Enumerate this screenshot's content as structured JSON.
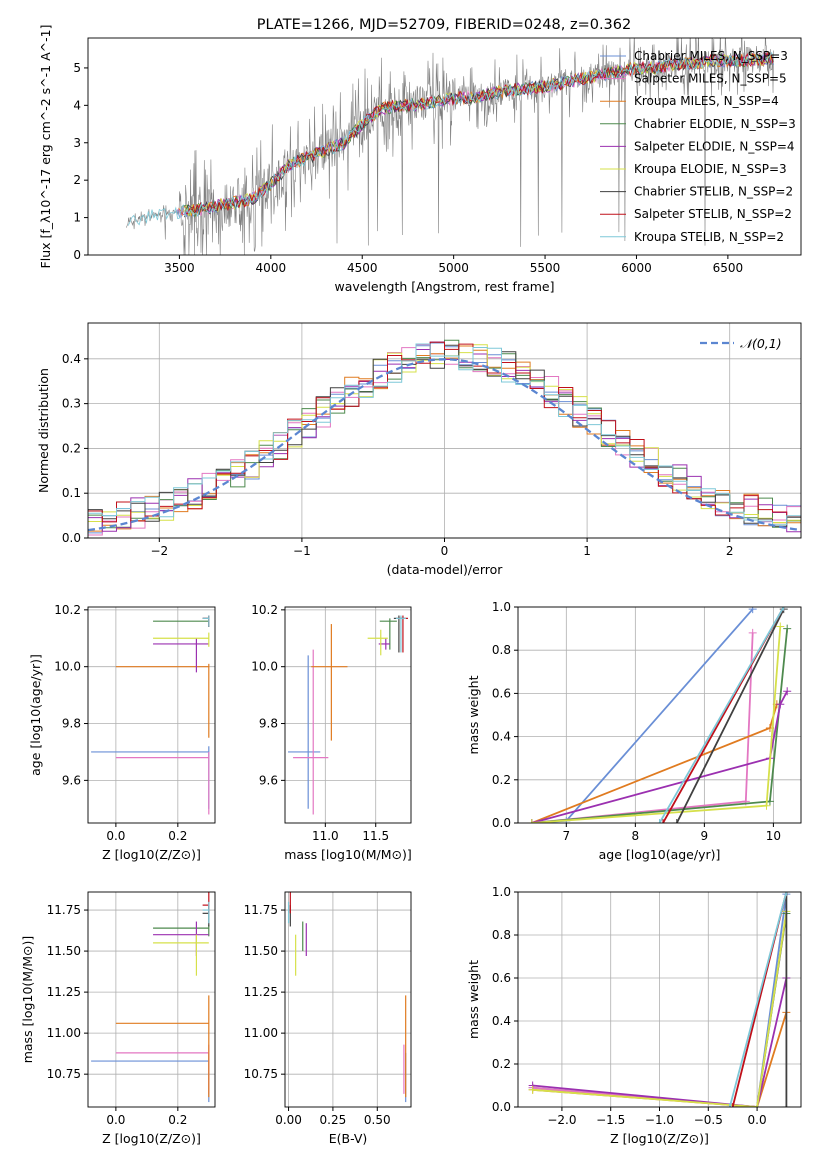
{
  "chart_data": [
    {
      "type": "line",
      "title": "PLATE=1266, MJD=52709, FIBERID=0248, z=0.362",
      "xlabel": "wavelength [Angstrom, rest frame]",
      "ylabel": "Flux [f_λ10^-17 erg cm^-2 s^-1 A^-1]",
      "xlim": [
        3000,
        6900
      ],
      "ylim": [
        0,
        5.8
      ],
      "xticks": [
        3500,
        4000,
        4500,
        5000,
        5500,
        6000,
        6500
      ],
      "yticks": [
        0,
        1,
        2,
        3,
        4,
        5
      ],
      "legend_position": "top-right",
      "observed_color": "#808080",
      "series": [
        {
          "name": "Chabrier MILES, N_SSP=3",
          "color": "#6a8fd6"
        },
        {
          "name": "Salpeter MILES, N_SSP=5",
          "color": "#e377c2"
        },
        {
          "name": "Kroupa MILES, N_SSP=4",
          "color": "#e07b20"
        },
        {
          "name": "Chabrier ELODIE, N_SSP=3",
          "color": "#4e8a4e"
        },
        {
          "name": "Salpeter ELODIE, N_SSP=4",
          "color": "#9b30b0"
        },
        {
          "name": "Kroupa ELODIE, N_SSP=3",
          "color": "#d6e04a"
        },
        {
          "name": "Chabrier STELIB, N_SSP=2",
          "color": "#404040"
        },
        {
          "name": "Salpeter STELIB, N_SSP=2",
          "color": "#c0101a"
        },
        {
          "name": "Kroupa STELIB, N_SSP=2",
          "color": "#7ec8d8"
        }
      ],
      "continuum": {
        "x": [
          3200,
          3300,
          3400,
          3500,
          3600,
          3700,
          3800,
          3900,
          4000,
          4100,
          4200,
          4300,
          4400,
          4500,
          4600,
          4700,
          4800,
          4900,
          5000,
          5100,
          5200,
          5300,
          5400,
          5500,
          5600,
          5700,
          5800,
          5900,
          6000,
          6100,
          6200,
          6300,
          6400,
          6500,
          6600,
          6700,
          6750
        ],
        "y": [
          0.8,
          1.0,
          1.1,
          1.15,
          1.2,
          1.3,
          1.4,
          1.5,
          1.9,
          2.4,
          2.6,
          2.8,
          3.0,
          3.5,
          3.9,
          4.0,
          4.0,
          4.1,
          4.2,
          4.2,
          4.3,
          4.4,
          4.45,
          4.5,
          4.6,
          4.7,
          4.8,
          4.9,
          5.0,
          5.0,
          5.1,
          5.1,
          5.2,
          5.2,
          5.2,
          5.25,
          5.25
        ]
      }
    },
    {
      "type": "histogram",
      "xlabel": "(data-model)/error",
      "ylabel": "Normed distribution",
      "xlim": [
        -2.5,
        2.5
      ],
      "ylim": [
        0,
        0.48
      ],
      "xticks": [
        -2,
        -1,
        0,
        1,
        2
      ],
      "yticks": [
        0.0,
        0.1,
        0.2,
        0.3,
        0.4
      ],
      "grid": true,
      "legend_position": "top-right",
      "normal_label": "𝒩(0,1)",
      "normal_color": "#5b86d1",
      "bin_width": 0.1
    },
    {
      "type": "errorbar",
      "xlabel": "Z [log10(Z/Z⊙)]",
      "ylabel": "age  [log10(age/yr)]",
      "xlim": [
        -0.09,
        0.32
      ],
      "ylim": [
        9.45,
        10.21
      ],
      "xticks": [
        0.0,
        0.2
      ],
      "yticks": [
        9.6,
        9.8,
        10.0,
        10.2
      ],
      "grid": true,
      "points": [
        {
          "series": "Chabrier MILES",
          "x": 0.3,
          "y": 9.7,
          "xerr": [
            0.38,
            0
          ],
          "yerr": [
            0.2,
            0.02
          ]
        },
        {
          "series": "Salpeter MILES",
          "x": 0.3,
          "y": 9.68,
          "xerr": [
            0.3,
            0
          ],
          "yerr": [
            0.2,
            0.02
          ]
        },
        {
          "series": "Kroupa MILES",
          "x": 0.3,
          "y": 10.0,
          "xerr": [
            0.3,
            0
          ],
          "yerr": [
            0.25,
            0.01
          ]
        },
        {
          "series": "Chabrier ELODIE",
          "x": 0.3,
          "y": 10.16,
          "xerr": [
            0.18,
            0
          ],
          "yerr": [
            0.02,
            0.01
          ]
        },
        {
          "series": "Salpeter ELODIE",
          "x": 0.26,
          "y": 10.08,
          "xerr": [
            0.14,
            0.04
          ],
          "yerr": [
            0.1,
            0.02
          ]
        },
        {
          "series": "Kroupa ELODIE",
          "x": 0.3,
          "y": 10.1,
          "xerr": [
            0.18,
            0
          ],
          "yerr": [
            0.03,
            0.02
          ]
        },
        {
          "series": "Chabrier STELIB",
          "x": 0.3,
          "y": 10.17,
          "xerr": [
            0.02,
            0
          ],
          "yerr": [
            0.03,
            0.01
          ]
        },
        {
          "series": "Salpeter STELIB",
          "x": 0.3,
          "y": 10.17,
          "xerr": [
            0.02,
            0
          ],
          "yerr": [
            0.03,
            0.01
          ]
        },
        {
          "series": "Kroupa STELIB",
          "x": 0.3,
          "y": 10.17,
          "xerr": [
            0.02,
            0
          ],
          "yerr": [
            0.03,
            0.01
          ]
        }
      ]
    },
    {
      "type": "errorbar",
      "xlabel": "mass [log10(M/M⊙)]",
      "ylabel": "",
      "xlim": [
        10.6,
        11.85
      ],
      "ylim": [
        9.45,
        10.21
      ],
      "xticks": [
        11.0,
        11.5
      ],
      "yticks": [
        9.6,
        9.8,
        10.0,
        10.2
      ],
      "grid": true,
      "points": [
        {
          "series": "Chabrier MILES",
          "x": 10.83,
          "y": 9.7,
          "xerr": [
            0.2,
            0.12
          ],
          "yerr": [
            0.2,
            0.34
          ]
        },
        {
          "series": "Salpeter MILES",
          "x": 10.88,
          "y": 9.68,
          "xerr": [
            0.2,
            0.15
          ],
          "yerr": [
            0.2,
            0.38
          ]
        },
        {
          "series": "Kroupa MILES",
          "x": 11.06,
          "y": 10.0,
          "xerr": [
            0.2,
            0.16
          ],
          "yerr": [
            0.26,
            0.15
          ]
        },
        {
          "series": "Chabrier ELODIE",
          "x": 11.64,
          "y": 10.16,
          "xerr": [
            0.1,
            0.07
          ],
          "yerr": [
            0.1,
            0.01
          ]
        },
        {
          "series": "Salpeter ELODIE",
          "x": 11.6,
          "y": 10.08,
          "xerr": [
            0.07,
            0.04
          ],
          "yerr": [
            0.02,
            0.02
          ]
        },
        {
          "series": "Kroupa ELODIE",
          "x": 11.55,
          "y": 10.1,
          "xerr": [
            0.13,
            0.07
          ],
          "yerr": [
            0.06,
            0.03
          ]
        },
        {
          "series": "Chabrier STELIB",
          "x": 11.73,
          "y": 10.17,
          "xerr": [
            0.05,
            0.05
          ],
          "yerr": [
            0.12,
            0.01
          ]
        },
        {
          "series": "Salpeter STELIB",
          "x": 11.77,
          "y": 10.17,
          "xerr": [
            0.05,
            0.05
          ],
          "yerr": [
            0.12,
            0.01
          ]
        },
        {
          "series": "Kroupa STELIB",
          "x": 11.75,
          "y": 10.17,
          "xerr": [
            0.05,
            0.05
          ],
          "yerr": [
            0.12,
            0.01
          ]
        }
      ]
    },
    {
      "type": "line",
      "xlabel": "age  [log10(age/yr)]",
      "ylabel": "mass weight",
      "xlim": [
        6.3,
        10.4
      ],
      "ylim": [
        0,
        1.0
      ],
      "xticks": [
        7,
        8,
        9,
        10
      ],
      "yticks": [
        0.0,
        0.2,
        0.4,
        0.6,
        0.8,
        1.0
      ],
      "grid": true,
      "series": [
        {
          "name": "Chabrier MILES",
          "x": [
            6.5,
            7.0,
            9.7
          ],
          "y": [
            0.0,
            0.01,
            0.99
          ]
        },
        {
          "name": "Salpeter MILES",
          "x": [
            6.5,
            9.6,
            9.7
          ],
          "y": [
            0.0,
            0.1,
            0.88
          ]
        },
        {
          "name": "Kroupa MILES",
          "x": [
            6.5,
            9.95,
            10.05
          ],
          "y": [
            0.0,
            0.44,
            0.55
          ]
        },
        {
          "name": "Chabrier ELODIE",
          "x": [
            6.5,
            9.95,
            10.2
          ],
          "y": [
            0.0,
            0.1,
            0.9
          ]
        },
        {
          "name": "Salpeter ELODIE",
          "x": [
            6.5,
            9.95,
            10.1,
            10.2
          ],
          "y": [
            0.0,
            0.3,
            0.55,
            0.61
          ]
        },
        {
          "name": "Kroupa ELODIE",
          "x": [
            6.5,
            9.9,
            10.1
          ],
          "y": [
            0.0,
            0.08,
            0.91
          ]
        },
        {
          "name": "Chabrier STELIB",
          "x": [
            8.6,
            10.15
          ],
          "y": [
            0.0,
            0.99
          ]
        },
        {
          "name": "Salpeter STELIB",
          "x": [
            8.4,
            10.15
          ],
          "y": [
            0.0,
            1.0
          ]
        },
        {
          "name": "Kroupa STELIB",
          "x": [
            8.35,
            10.15
          ],
          "y": [
            0.0,
            1.0
          ]
        }
      ]
    },
    {
      "type": "errorbar",
      "xlabel": "Z [log10(Z/Z⊙)]",
      "ylabel": "mass [log10(M/M⊙)]",
      "xlim": [
        -0.09,
        0.32
      ],
      "ylim": [
        10.55,
        11.86
      ],
      "xticks": [
        0.0,
        0.2
      ],
      "yticks": [
        10.75,
        11.0,
        11.25,
        11.5,
        11.75
      ],
      "grid": true,
      "points": [
        {
          "series": "Chabrier MILES",
          "x": 0.3,
          "y": 10.83,
          "xerr": [
            0.38,
            0
          ],
          "yerr": [
            0.25,
            0.05
          ]
        },
        {
          "series": "Salpeter MILES",
          "x": 0.3,
          "y": 10.88,
          "xerr": [
            0.3,
            0
          ],
          "yerr": [
            0.25,
            0.05
          ]
        },
        {
          "series": "Kroupa MILES",
          "x": 0.3,
          "y": 11.06,
          "xerr": [
            0.3,
            0
          ],
          "yerr": [
            0.45,
            0.17
          ]
        },
        {
          "series": "Chabrier ELODIE",
          "x": 0.3,
          "y": 11.64,
          "xerr": [
            0.18,
            0
          ],
          "yerr": [
            0.05,
            0.02
          ]
        },
        {
          "series": "Salpeter ELODIE",
          "x": 0.26,
          "y": 11.6,
          "xerr": [
            0.14,
            0.04
          ],
          "yerr": [
            0.13,
            0.08
          ]
        },
        {
          "series": "Kroupa ELODIE",
          "x": 0.26,
          "y": 11.55,
          "xerr": [
            0.14,
            0.04
          ],
          "yerr": [
            0.2,
            0.05
          ]
        },
        {
          "series": "Chabrier STELIB",
          "x": 0.3,
          "y": 11.73,
          "xerr": [
            0.02,
            0
          ],
          "yerr": [
            0.08,
            0.05
          ]
        },
        {
          "series": "Salpeter STELIB",
          "x": 0.3,
          "y": 11.78,
          "xerr": [
            0.02,
            0
          ],
          "yerr": [
            0.05,
            0.08
          ]
        },
        {
          "series": "Kroupa STELIB",
          "x": 0.3,
          "y": 11.75,
          "xerr": [
            0.02,
            0
          ],
          "yerr": [
            0.08,
            0.05
          ]
        }
      ]
    },
    {
      "type": "errorbar",
      "xlabel": "E(B-V)",
      "ylabel": "",
      "xlim": [
        -0.02,
        0.69
      ],
      "ylim": [
        10.55,
        11.86
      ],
      "xticks": [
        0.0,
        0.25,
        0.5
      ],
      "yticks": [
        10.75,
        11.0,
        11.25,
        11.5,
        11.75
      ],
      "grid": true,
      "points": [
        {
          "series": "Chabrier MILES",
          "x": 0.66,
          "y": 10.83,
          "xerr": [
            0,
            0
          ],
          "yerr": [
            0.25,
            0.05
          ]
        },
        {
          "series": "Salpeter MILES",
          "x": 0.65,
          "y": 10.88,
          "xerr": [
            0,
            0
          ],
          "yerr": [
            0.25,
            0.05
          ]
        },
        {
          "series": "Kroupa MILES",
          "x": 0.66,
          "y": 11.06,
          "xerr": [
            0,
            0
          ],
          "yerr": [
            0.45,
            0.17
          ]
        },
        {
          "series": "Chabrier ELODIE",
          "x": 0.08,
          "y": 11.6,
          "xerr": [
            0,
            0
          ],
          "yerr": [
            0.1,
            0.08
          ]
        },
        {
          "series": "Salpeter ELODIE",
          "x": 0.1,
          "y": 11.57,
          "xerr": [
            0,
            0
          ],
          "yerr": [
            0.1,
            0.1
          ]
        },
        {
          "series": "Kroupa ELODIE",
          "x": 0.04,
          "y": 11.5,
          "xerr": [
            0,
            0
          ],
          "yerr": [
            0.15,
            0.1
          ]
        },
        {
          "series": "Chabrier STELIB",
          "x": 0.01,
          "y": 11.73,
          "xerr": [
            0,
            0
          ],
          "yerr": [
            0.08,
            0.05
          ]
        },
        {
          "series": "Salpeter STELIB",
          "x": 0.01,
          "y": 11.78,
          "xerr": [
            0,
            0
          ],
          "yerr": [
            0.05,
            0.08
          ]
        },
        {
          "series": "Kroupa STELIB",
          "x": 0.0,
          "y": 11.75,
          "xerr": [
            0,
            0
          ],
          "yerr": [
            0.08,
            0.05
          ]
        }
      ]
    },
    {
      "type": "line",
      "xlabel": "Z [log10(Z/Z⊙)]",
      "ylabel": "mass weight",
      "xlim": [
        -2.45,
        0.45
      ],
      "ylim": [
        0,
        1.0
      ],
      "xticks": [
        -2.0,
        -1.5,
        -1.0,
        -0.5,
        0.0
      ],
      "yticks": [
        0.0,
        0.2,
        0.4,
        0.6,
        0.8,
        1.0
      ],
      "grid": true,
      "series": [
        {
          "name": "Chabrier MILES",
          "x": [
            -2.3,
            0.0,
            0.3
          ],
          "y": [
            0.09,
            0.0,
            0.99
          ]
        },
        {
          "name": "Salpeter MILES",
          "x": [
            -2.3,
            0.0,
            0.3
          ],
          "y": [
            0.09,
            0.0,
            0.9
          ]
        },
        {
          "name": "Kroupa MILES",
          "x": [
            -2.3,
            0.0,
            0.3
          ],
          "y": [
            0.08,
            0.0,
            0.44
          ]
        },
        {
          "name": "Chabrier ELODIE",
          "x": [
            0.0,
            0.3
          ],
          "y": [
            0.0,
            0.9
          ]
        },
        {
          "name": "Salpeter ELODIE",
          "x": [
            -2.3,
            0.0,
            0.3
          ],
          "y": [
            0.1,
            0.0,
            0.6
          ]
        },
        {
          "name": "Kroupa ELODIE",
          "x": [
            -2.3,
            0.0,
            0.3
          ],
          "y": [
            0.08,
            0.0,
            0.91
          ]
        },
        {
          "name": "Chabrier STELIB",
          "x": [
            0.3,
            0.3
          ],
          "y": [
            0.0,
            1.0
          ]
        },
        {
          "name": "Salpeter STELIB",
          "x": [
            -0.25,
            0.3
          ],
          "y": [
            0.0,
            1.0
          ]
        },
        {
          "name": "Kroupa STELIB",
          "x": [
            -0.28,
            0.3
          ],
          "y": [
            0.0,
            1.0
          ]
        }
      ]
    }
  ]
}
